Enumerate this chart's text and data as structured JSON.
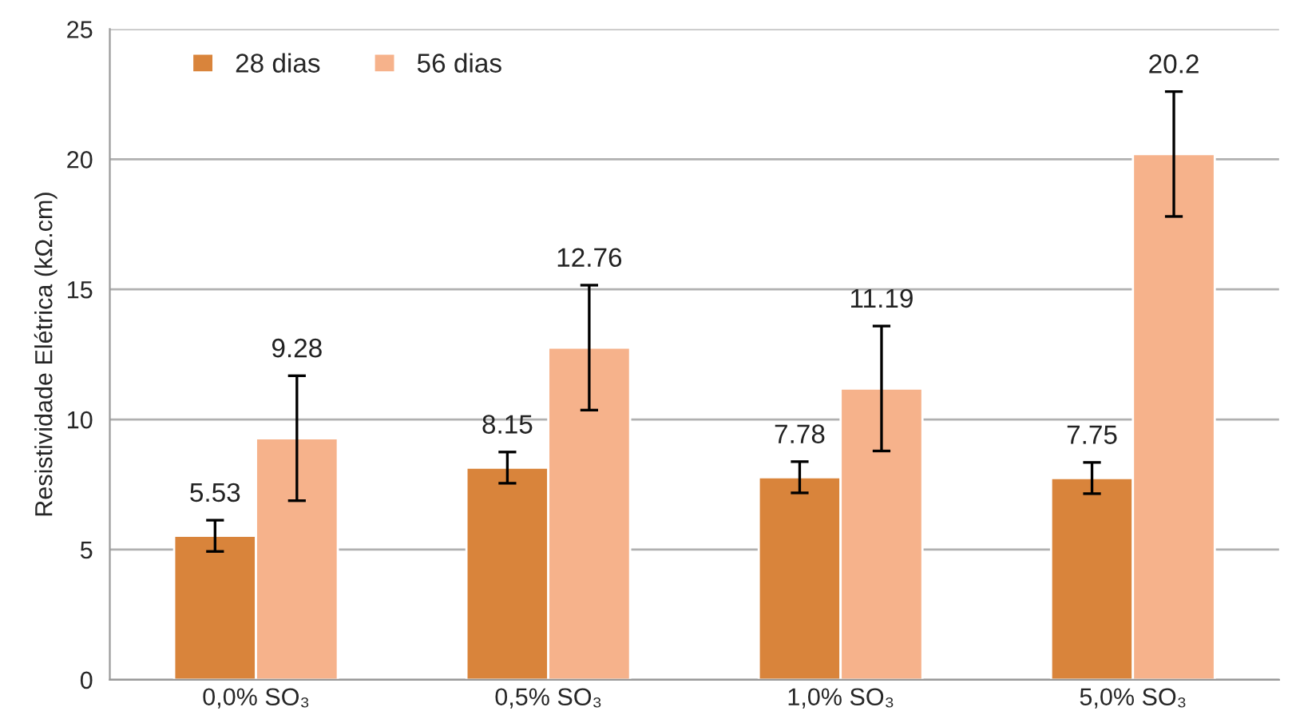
{
  "chart_data": {
    "type": "bar",
    "ylabel": "Resistividade Elétrica (kΩ.cm)",
    "categories": [
      "0,0% SO₃",
      "0,5% SO₃",
      "1,0% SO₃",
      "5,0% SO₃"
    ],
    "series": [
      {
        "name": "28 dias",
        "color": "#d9843b",
        "values": [
          5.53,
          8.15,
          7.78,
          7.75
        ],
        "errors": [
          0.6,
          0.6,
          0.6,
          0.6
        ]
      },
      {
        "name": "56 dias",
        "color": "#f6b28b",
        "values": [
          9.28,
          12.76,
          11.19,
          20.2
        ],
        "errors": [
          2.4,
          2.4,
          2.4,
          2.4
        ]
      }
    ],
    "ylim": [
      0,
      25
    ],
    "yticks": [
      0,
      5,
      10,
      15,
      20,
      25
    ],
    "grid": "y",
    "legend": "top left",
    "data_labels": true
  }
}
